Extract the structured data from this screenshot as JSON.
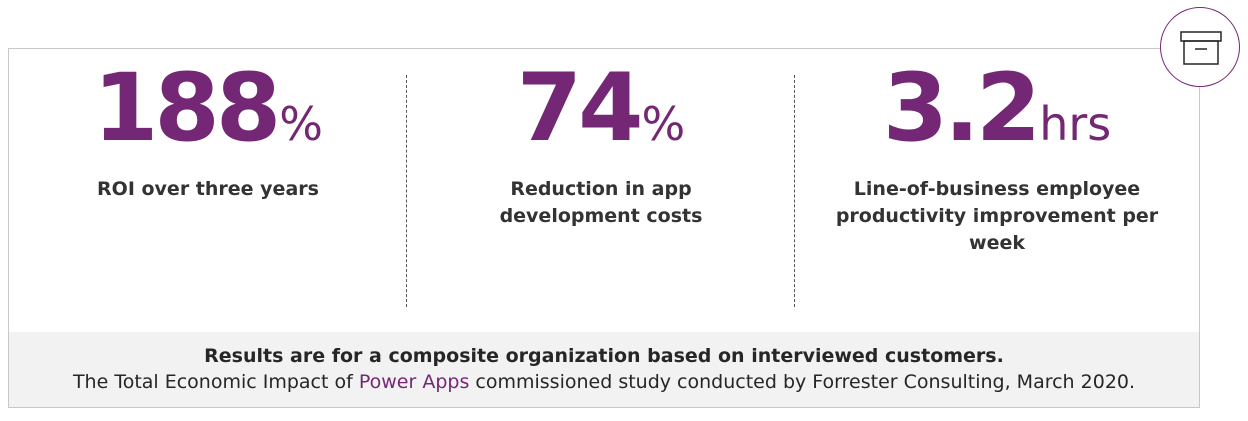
{
  "stats": [
    {
      "value": "188",
      "unit": "%",
      "label": "ROI over three years"
    },
    {
      "value": "74",
      "unit": "%",
      "label": "Reduction in app development costs"
    },
    {
      "value": "3.2",
      "unit": "hrs",
      "label": "Line-of-business employee productivity improvement per week"
    }
  ],
  "footer": {
    "line1": "Results are for a composite organization based on interviewed customers.",
    "line2_before": "The Total Economic Impact of ",
    "line2_highlight": "Power Apps",
    "line2_after": " commissioned study conducted by Forrester Consulting, March 2020."
  },
  "badge": {
    "icon": "archive-box-icon"
  },
  "colors": {
    "accent": "#742774",
    "text": "#333333",
    "footer_bg": "#f2f2f2",
    "border": "#c8c8c8"
  }
}
